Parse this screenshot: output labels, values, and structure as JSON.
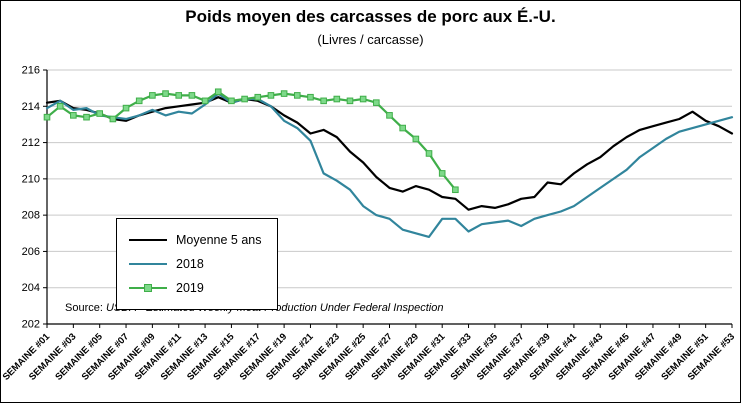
{
  "title": "Poids moyen des carcasses de porc aux É.-U.",
  "subtitle": "(Livres / carcasse)",
  "source": {
    "prefix": "Source: ",
    "text": "USDA - Estimated Weekly Meat Production Under Federal Inspection"
  },
  "colors": {
    "moyenne": "#000000",
    "y2018": "#31859C",
    "y2019": "#3FAE49",
    "marker_fill": "#7ED98A",
    "gridline": "#C9C9C9",
    "axis": "#000000",
    "background": "#FFFFFF"
  },
  "chart_data": {
    "type": "line",
    "title": "Poids moyen des carcasses de porc aux É.-U.",
    "subtitle": "(Livres / carcasse)",
    "xlabel": "",
    "ylabel": "",
    "ylim": [
      202,
      216
    ],
    "y_ticks": [
      202,
      204,
      206,
      208,
      210,
      212,
      214,
      216
    ],
    "n_weeks": 53,
    "x_tick_labels": [
      "SEMAINE #01",
      "SEMAINE #03",
      "SEMAINE #05",
      "SEMAINE #07",
      "SEMAINE #09",
      "SEMAINE #11",
      "SEMAINE #13",
      "SEMAINE #15",
      "SEMAINE #17",
      "SEMAINE #19",
      "SEMAINE #21",
      "SEMAINE #23",
      "SEMAINE #25",
      "SEMAINE #27",
      "SEMAINE #29",
      "SEMAINE #31",
      "SEMAINE #33",
      "SEMAINE #35",
      "SEMAINE #37",
      "SEMAINE #39",
      "SEMAINE #41",
      "SEMAINE #43",
      "SEMAINE #45",
      "SEMAINE #47",
      "SEMAINE #49",
      "SEMAINE #51",
      "SEMAINE #53"
    ],
    "grid": "horizontal",
    "legend_position": "inside-left",
    "series": [
      {
        "name": "Moyenne 5 ans",
        "color_key": "moyenne",
        "marker": "none",
        "values": [
          214.2,
          214.3,
          213.9,
          213.8,
          213.6,
          213.3,
          213.2,
          213.5,
          213.7,
          213.9,
          214.0,
          214.1,
          214.2,
          214.5,
          214.2,
          214.4,
          214.3,
          214.0,
          213.5,
          213.1,
          212.5,
          212.7,
          212.3,
          211.5,
          210.9,
          210.1,
          209.5,
          209.3,
          209.6,
          209.4,
          209.0,
          208.9,
          208.3,
          208.5,
          208.4,
          208.6,
          208.9,
          209.0,
          209.8,
          209.7,
          210.3,
          210.8,
          211.2,
          211.8,
          212.3,
          212.7,
          212.9,
          213.1,
          213.3,
          213.7,
          213.2,
          212.9,
          212.5
        ]
      },
      {
        "name": "2018",
        "color_key": "y2018",
        "marker": "none",
        "values": [
          213.9,
          214.3,
          213.8,
          213.9,
          213.5,
          213.4,
          213.3,
          213.5,
          213.8,
          213.5,
          213.7,
          213.6,
          214.1,
          214.7,
          214.2,
          214.4,
          214.4,
          214.0,
          213.2,
          212.8,
          212.1,
          210.3,
          209.9,
          209.4,
          208.5,
          208.0,
          207.8,
          207.2,
          207.0,
          206.8,
          207.8,
          207.8,
          207.1,
          207.5,
          207.6,
          207.7,
          207.4,
          207.8,
          208.0,
          208.2,
          208.5,
          209.0,
          209.5,
          210.0,
          210.5,
          211.2,
          211.7,
          212.2,
          212.6,
          212.8,
          213.0,
          213.2,
          213.4
        ]
      },
      {
        "name": "2019",
        "color_key": "y2019",
        "marker": "square",
        "values": [
          213.4,
          214.0,
          213.5,
          213.4,
          213.6,
          213.3,
          213.9,
          214.3,
          214.6,
          214.7,
          214.6,
          214.6,
          214.3,
          214.8,
          214.3,
          214.4,
          214.5,
          214.6,
          214.7,
          214.6,
          214.5,
          214.3,
          214.4,
          214.3,
          214.4,
          214.2,
          213.5,
          212.8,
          212.2,
          211.4,
          210.3,
          209.4
        ]
      }
    ]
  }
}
